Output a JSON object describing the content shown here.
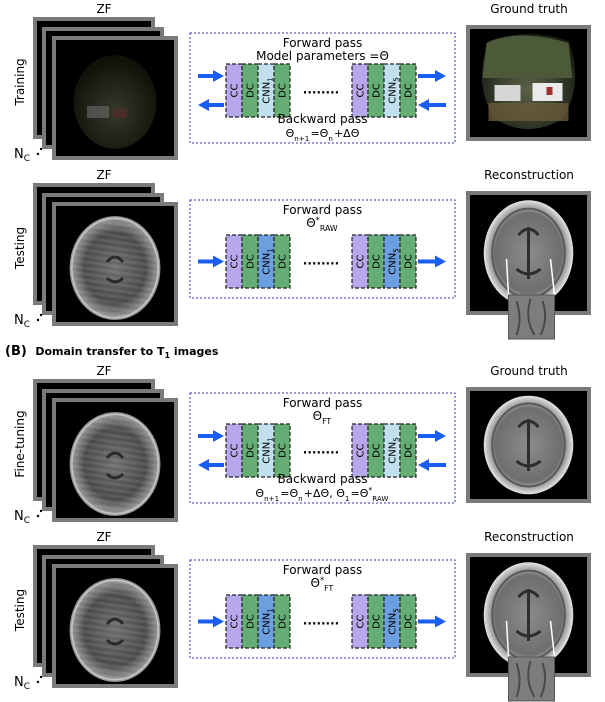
{
  "section_b_title": {
    "prefix": "(B)",
    "text": "Domain transfer to T",
    "sub": "1",
    "suffix": " images"
  },
  "rows": [
    {
      "side_label": "Training",
      "zf_label": "ZF",
      "nc": {
        "main": "N",
        "sub": "C"
      },
      "panel": {
        "line1": "Forward pass",
        "line2": "Model parameters =Θ",
        "bottom1": "Backward pass",
        "bottom2": "Θn+1=Θn+ΔΘ"
      },
      "right_label": "Ground truth",
      "image_kind": "photo"
    },
    {
      "side_label": "Testing",
      "zf_label": "ZF",
      "nc": {
        "main": "N",
        "sub": "C"
      },
      "panel": {
        "line1": "Forward pass",
        "line2": "Θ*RAW"
      },
      "right_label": "Reconstruction",
      "image_kind": "brain"
    },
    {
      "side_label": "Fine-tuning",
      "zf_label": "ZF",
      "nc": {
        "main": "N",
        "sub": "C"
      },
      "panel": {
        "line1": "Forward pass",
        "line2": "ΘFT",
        "bottom1": "Backward pass",
        "bottom2": "Θn+1=Θn+ΔΘ, Θ1=Θ*RAW"
      },
      "right_label": "Ground truth",
      "image_kind": "brain"
    },
    {
      "side_label": "Testing",
      "zf_label": "ZF",
      "nc": {
        "main": "N",
        "sub": "C"
      },
      "panel": {
        "line1": "Forward pass",
        "line2": "Θ*FT"
      },
      "right_label": "Reconstruction",
      "image_kind": "brain"
    }
  ],
  "blocks": {
    "cc": "CC",
    "dc": "DC",
    "cnn_first": {
      "main": "CNN",
      "sub": "1"
    },
    "cnn_last": {
      "main": "CNN",
      "sub": "5"
    },
    "ellipsis": "........"
  },
  "colors": {
    "cc": "#b6a8ea",
    "dc": "#65ad75",
    "cnn_train": "#bfe0ec",
    "cnn_test": "#6b9fe0",
    "arrow": "#1a5ef0",
    "panel_border": "#3333bb"
  }
}
